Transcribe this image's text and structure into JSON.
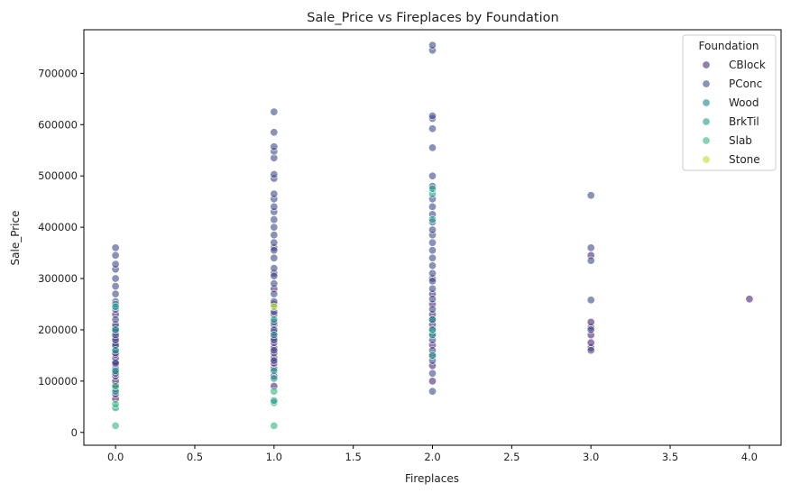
{
  "chart_data": {
    "type": "scatter",
    "title": "Sale_Price vs Fireplaces by Foundation",
    "xlabel": "Fireplaces",
    "ylabel": "Sale_Price",
    "xlim": [
      -0.2,
      4.2
    ],
    "ylim": [
      -25000,
      785000
    ],
    "x_ticks": [
      0.0,
      0.5,
      1.0,
      1.5,
      2.0,
      2.5,
      3.0,
      3.5,
      4.0
    ],
    "x_tick_labels": [
      "0.0",
      "0.5",
      "1.0",
      "1.5",
      "2.0",
      "2.5",
      "3.0",
      "3.5",
      "4.0"
    ],
    "y_ticks": [
      0,
      100000,
      200000,
      300000,
      400000,
      500000,
      600000,
      700000
    ],
    "y_tick_labels": [
      "0",
      "100000",
      "200000",
      "300000",
      "400000",
      "500000",
      "600000",
      "700000"
    ],
    "grid": false,
    "legend": {
      "title": "Foundation",
      "placement": "top-right"
    },
    "series": [
      {
        "name": "CBlock",
        "color": "#482878",
        "points": [
          [
            0,
            65000
          ],
          [
            0,
            75000
          ],
          [
            0,
            85000
          ],
          [
            0,
            92000
          ],
          [
            0,
            100000
          ],
          [
            0,
            110000
          ],
          [
            0,
            118000
          ],
          [
            0,
            125000
          ],
          [
            0,
            132000
          ],
          [
            0,
            138000
          ],
          [
            0,
            145000
          ],
          [
            0,
            152000
          ],
          [
            0,
            160000
          ],
          [
            0,
            168000
          ],
          [
            0,
            175000
          ],
          [
            0,
            185000
          ],
          [
            0,
            195000
          ],
          [
            0,
            205000
          ],
          [
            0,
            230000
          ],
          [
            1,
            90000
          ],
          [
            1,
            110000
          ],
          [
            1,
            125000
          ],
          [
            1,
            135000
          ],
          [
            1,
            145000
          ],
          [
            1,
            155000
          ],
          [
            1,
            165000
          ],
          [
            1,
            175000
          ],
          [
            1,
            185000
          ],
          [
            1,
            195000
          ],
          [
            1,
            210000
          ],
          [
            1,
            230000
          ],
          [
            1,
            250000
          ],
          [
            1,
            280000
          ],
          [
            1,
            310000
          ],
          [
            1,
            360000
          ],
          [
            2,
            100000
          ],
          [
            2,
            130000
          ],
          [
            2,
            150000
          ],
          [
            2,
            170000
          ],
          [
            2,
            190000
          ],
          [
            2,
            210000
          ],
          [
            2,
            230000
          ],
          [
            2,
            250000
          ],
          [
            2,
            270000
          ],
          [
            2,
            300000
          ],
          [
            3,
            165000
          ],
          [
            3,
            175000
          ],
          [
            3,
            190000
          ],
          [
            3,
            205000
          ],
          [
            3,
            215000
          ],
          [
            3,
            345000
          ],
          [
            4,
            260000
          ]
        ]
      },
      {
        "name": "PConc",
        "color": "#3e4a89",
        "points": [
          [
            0,
            115000
          ],
          [
            0,
            135000
          ],
          [
            0,
            155000
          ],
          [
            0,
            170000
          ],
          [
            0,
            180000
          ],
          [
            0,
            190000
          ],
          [
            0,
            200000
          ],
          [
            0,
            210000
          ],
          [
            0,
            220000
          ],
          [
            0,
            240000
          ],
          [
            0,
            255000
          ],
          [
            0,
            270000
          ],
          [
            0,
            285000
          ],
          [
            0,
            300000
          ],
          [
            0,
            318000
          ],
          [
            0,
            328000
          ],
          [
            0,
            345000
          ],
          [
            0,
            360000
          ],
          [
            1,
            140000
          ],
          [
            1,
            160000
          ],
          [
            1,
            180000
          ],
          [
            1,
            200000
          ],
          [
            1,
            215000
          ],
          [
            1,
            235000
          ],
          [
            1,
            255000
          ],
          [
            1,
            270000
          ],
          [
            1,
            290000
          ],
          [
            1,
            305000
          ],
          [
            1,
            320000
          ],
          [
            1,
            340000
          ],
          [
            1,
            355000
          ],
          [
            1,
            370000
          ],
          [
            1,
            385000
          ],
          [
            1,
            400000
          ],
          [
            1,
            415000
          ],
          [
            1,
            430000
          ],
          [
            1,
            440000
          ],
          [
            1,
            455000
          ],
          [
            1,
            465000
          ],
          [
            1,
            495000
          ],
          [
            1,
            503000
          ],
          [
            1,
            535000
          ],
          [
            1,
            548000
          ],
          [
            1,
            557000
          ],
          [
            1,
            585000
          ],
          [
            1,
            625000
          ],
          [
            2,
            80000
          ],
          [
            2,
            115000
          ],
          [
            2,
            140000
          ],
          [
            2,
            160000
          ],
          [
            2,
            180000
          ],
          [
            2,
            200000
          ],
          [
            2,
            220000
          ],
          [
            2,
            240000
          ],
          [
            2,
            260000
          ],
          [
            2,
            280000
          ],
          [
            2,
            295000
          ],
          [
            2,
            310000
          ],
          [
            2,
            325000
          ],
          [
            2,
            340000
          ],
          [
            2,
            355000
          ],
          [
            2,
            370000
          ],
          [
            2,
            385000
          ],
          [
            2,
            395000
          ],
          [
            2,
            410000
          ],
          [
            2,
            425000
          ],
          [
            2,
            440000
          ],
          [
            2,
            455000
          ],
          [
            2,
            480000
          ],
          [
            2,
            500000
          ],
          [
            2,
            555000
          ],
          [
            2,
            592000
          ],
          [
            2,
            612000
          ],
          [
            2,
            617000
          ],
          [
            2,
            745000
          ],
          [
            2,
            755000
          ],
          [
            3,
            160000
          ],
          [
            3,
            200000
          ],
          [
            3,
            258000
          ],
          [
            3,
            335000
          ],
          [
            3,
            360000
          ],
          [
            3,
            462000
          ]
        ]
      },
      {
        "name": "Wood",
        "color": "#26828e",
        "points": [
          [
            0,
            250000
          ],
          [
            1,
            190000
          ],
          [
            2,
            220000
          ]
        ]
      },
      {
        "name": "BrkTil",
        "color": "#1f9e89",
        "points": [
          [
            0,
            48000
          ],
          [
            0,
            80000
          ],
          [
            0,
            120000
          ],
          [
            0,
            160000
          ],
          [
            0,
            200000
          ],
          [
            0,
            245000
          ],
          [
            1,
            58000
          ],
          [
            1,
            62000
          ],
          [
            1,
            105000
          ],
          [
            1,
            120000
          ],
          [
            1,
            220000
          ],
          [
            2,
            150000
          ],
          [
            2,
            190000
          ],
          [
            2,
            200000
          ],
          [
            2,
            415000
          ],
          [
            2,
            465000
          ],
          [
            2,
            475000
          ]
        ]
      },
      {
        "name": "Slab",
        "color": "#35b779",
        "points": [
          [
            0,
            13000
          ],
          [
            0,
            55000
          ],
          [
            0,
            90000
          ],
          [
            1,
            13000
          ],
          [
            1,
            80000
          ]
        ]
      },
      {
        "name": "Stone",
        "color": "#b5de2b",
        "points": [
          [
            1,
            245000
          ]
        ]
      }
    ]
  }
}
